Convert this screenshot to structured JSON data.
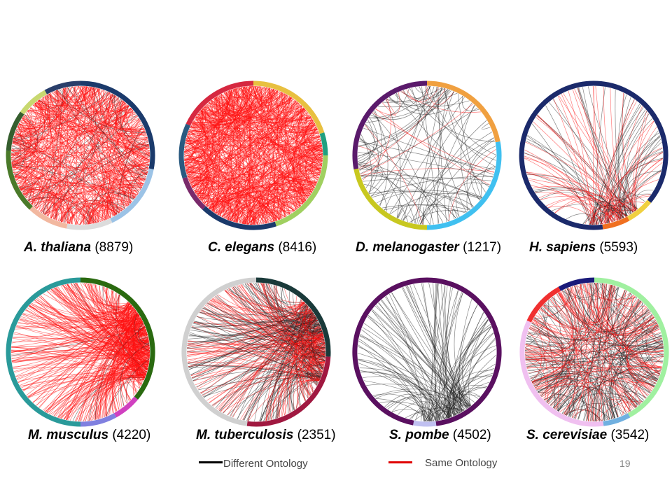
{
  "panels": [
    {
      "id": "athaliana",
      "species": "A. thaliana",
      "count": "(8879)",
      "density": 500,
      "red": 0.92,
      "focus": "scatter",
      "ring": [
        [
          "#1b3a6b",
          0.0,
          0.28
        ],
        [
          "#9cc3e6",
          0.28,
          0.43
        ],
        [
          "#dcdcdc",
          0.43,
          0.53
        ],
        [
          "#f2b8a0",
          0.53,
          0.62
        ],
        [
          "#4a7a2a",
          0.62,
          0.76
        ],
        [
          "#355e2e",
          0.76,
          0.85
        ],
        [
          "#c8d870",
          0.85,
          0.92
        ],
        [
          "#2a3f6b",
          0.92,
          1.0
        ]
      ]
    },
    {
      "id": "celegans",
      "species": "C. elegans",
      "count": "(8416)",
      "density": 650,
      "red": 1.0,
      "focus": "scatter",
      "ring": [
        [
          "#e8c040",
          0.0,
          0.2
        ],
        [
          "#20a080",
          0.2,
          0.25
        ],
        [
          "#a0d060",
          0.25,
          0.45
        ],
        [
          "#1b3a6b",
          0.45,
          0.62
        ],
        [
          "#7a2a6b",
          0.62,
          0.7
        ],
        [
          "#2a5a80",
          0.7,
          0.82
        ],
        [
          "#d62840",
          0.82,
          1.0
        ]
      ]
    },
    {
      "id": "dmelanogaster",
      "species": "D. melanogaster",
      "count": "(1217)",
      "density": 110,
      "red": 0.15,
      "focus": "scatter",
      "ring": [
        [
          "#f0a040",
          0.0,
          0.22
        ],
        [
          "#40c0f0",
          0.22,
          0.5
        ],
        [
          "#c8c820",
          0.5,
          0.72
        ],
        [
          "#5a1a6b",
          0.72,
          1.0
        ]
      ]
    },
    {
      "id": "hsapiens",
      "species": "H. sapiens",
      "count": "(5593)",
      "density": 140,
      "red": 0.5,
      "focus": "bottom",
      "ring": [
        [
          "#1b2a6b",
          0.0,
          0.36
        ],
        [
          "#f0d040",
          0.36,
          0.42
        ],
        [
          "#f07020",
          0.42,
          0.48
        ],
        [
          "#1b2a6b",
          0.48,
          1.0
        ]
      ]
    },
    {
      "id": "mmusculus",
      "species": "M. musculus",
      "count": "(4220)",
      "density": 420,
      "red": 0.97,
      "focus": "right",
      "ring": [
        [
          "#2a6a10",
          0.0,
          0.36
        ],
        [
          "#d040c0",
          0.36,
          0.42
        ],
        [
          "#8080e0",
          0.42,
          0.5
        ],
        [
          "#2a9a9a",
          0.5,
          1.0
        ]
      ]
    },
    {
      "id": "mtuberculosis",
      "species": "M. tuberculosis",
      "count": "(2351)",
      "density": 380,
      "red": 0.5,
      "focus": "right",
      "ring": [
        [
          "#1a3a3a",
          0.0,
          0.26
        ],
        [
          "#a01840",
          0.26,
          0.52
        ],
        [
          "#d0d0d0",
          0.52,
          1.0
        ]
      ]
    },
    {
      "id": "spombe",
      "species": "S. pombe",
      "count": "(4502)",
      "density": 130,
      "red": 0.0,
      "focus": "bottom",
      "ring": [
        [
          "#5a1060",
          0.0,
          0.48
        ],
        [
          "#c0c0f0",
          0.48,
          0.53
        ],
        [
          "#5a1060",
          0.53,
          1.0
        ]
      ]
    },
    {
      "id": "scerevisiae",
      "species": "S. cerevisiae",
      "count": "(3542)",
      "density": 320,
      "red": 0.45,
      "focus": "center",
      "ring": [
        [
          "#a0f0a0",
          0.0,
          0.42
        ],
        [
          "#70b0e0",
          0.42,
          0.48
        ],
        [
          "#f0c0f0",
          0.48,
          0.82
        ],
        [
          "#f03030",
          0.82,
          0.92
        ],
        [
          "#1a1a7a",
          0.92,
          1.0
        ]
      ]
    }
  ],
  "legend": {
    "different": {
      "label": "Different Ontology",
      "color": "#000000"
    },
    "same": {
      "label": "Same Ontology",
      "color": "#e00000"
    }
  },
  "page_number": "19"
}
